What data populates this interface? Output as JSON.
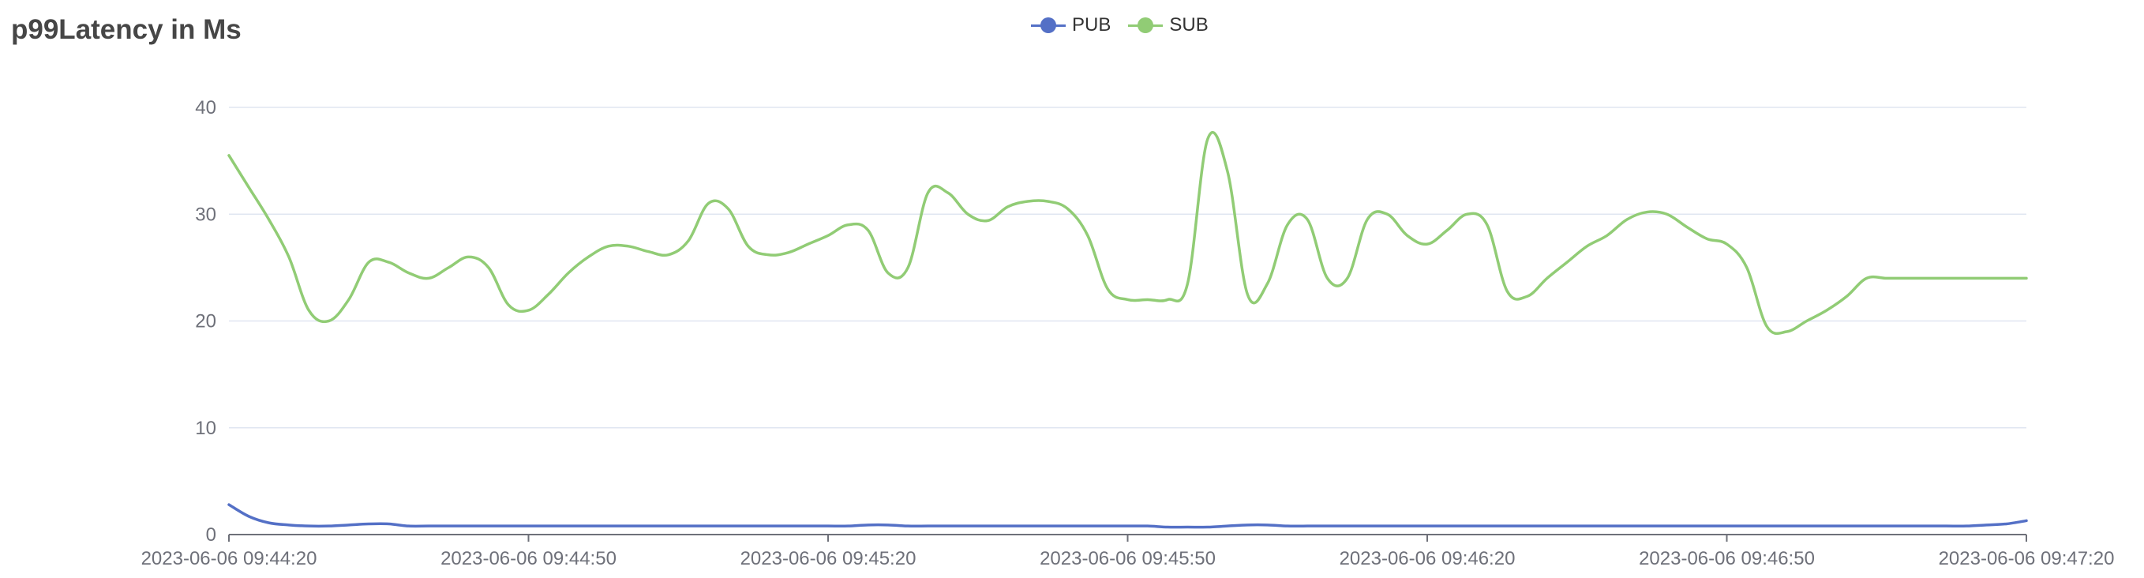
{
  "title": "p99Latency in Ms",
  "legend": [
    {
      "name": "PUB",
      "color": "#5470c6"
    },
    {
      "name": "SUB",
      "color": "#91cc75"
    }
  ],
  "chart_data": {
    "type": "line",
    "title": "p99Latency in Ms",
    "xlabel": "",
    "ylabel": "",
    "ylim": [
      0,
      40
    ],
    "y_ticks": [
      0,
      10,
      20,
      30,
      40
    ],
    "x_ticks": [
      "2023-06-06 09:44:20",
      "2023-06-06 09:44:50",
      "2023-06-06 09:45:20",
      "2023-06-06 09:45:50",
      "2023-06-06 09:46:20",
      "2023-06-06 09:46:50",
      "2023-06-06 09:47:20"
    ],
    "grid": true,
    "smooth": true,
    "legend_position": "top-center",
    "x": [
      "09:44:20",
      "09:44:22",
      "09:44:24",
      "09:44:26",
      "09:44:28",
      "09:44:30",
      "09:44:32",
      "09:44:34",
      "09:44:36",
      "09:44:38",
      "09:44:40",
      "09:44:42",
      "09:44:44",
      "09:44:46",
      "09:44:48",
      "09:44:50",
      "09:44:52",
      "09:44:54",
      "09:44:56",
      "09:44:58",
      "09:45:00",
      "09:45:02",
      "09:45:04",
      "09:45:06",
      "09:45:08",
      "09:45:10",
      "09:45:12",
      "09:45:14",
      "09:45:16",
      "09:45:18",
      "09:45:20",
      "09:45:22",
      "09:45:24",
      "09:45:26",
      "09:45:28",
      "09:45:30",
      "09:45:32",
      "09:45:34",
      "09:45:36",
      "09:45:38",
      "09:45:40",
      "09:45:42",
      "09:45:44",
      "09:45:46",
      "09:45:48",
      "09:45:50",
      "09:45:52",
      "09:45:54",
      "09:45:56",
      "09:45:58",
      "09:46:00",
      "09:46:02",
      "09:46:04",
      "09:46:06",
      "09:46:08",
      "09:46:10",
      "09:46:12",
      "09:46:14",
      "09:46:16",
      "09:46:18",
      "09:46:20",
      "09:46:22",
      "09:46:24",
      "09:46:26",
      "09:46:28",
      "09:46:30",
      "09:46:32",
      "09:46:34",
      "09:46:36",
      "09:46:38",
      "09:46:40",
      "09:46:42",
      "09:46:44",
      "09:46:46",
      "09:46:48",
      "09:46:50",
      "09:46:52",
      "09:46:54",
      "09:46:56",
      "09:46:58",
      "09:47:00",
      "09:47:02",
      "09:47:04",
      "09:47:06",
      "09:47:08",
      "09:47:10",
      "09:47:12",
      "09:47:14",
      "09:47:16",
      "09:47:18",
      "09:47:20"
    ],
    "series": [
      {
        "name": "PUB",
        "color": "#5470c6",
        "values": [
          2.8,
          1.7,
          1.1,
          0.9,
          0.8,
          0.8,
          0.9,
          1.0,
          1.0,
          0.8,
          0.8,
          0.8,
          0.8,
          0.8,
          0.8,
          0.8,
          0.8,
          0.8,
          0.8,
          0.8,
          0.8,
          0.8,
          0.8,
          0.8,
          0.8,
          0.8,
          0.8,
          0.8,
          0.8,
          0.8,
          0.8,
          0.8,
          0.9,
          0.9,
          0.8,
          0.8,
          0.8,
          0.8,
          0.8,
          0.8,
          0.8,
          0.8,
          0.8,
          0.8,
          0.8,
          0.8,
          0.8,
          0.7,
          0.7,
          0.7,
          0.8,
          0.9,
          0.9,
          0.8,
          0.8,
          0.8,
          0.8,
          0.8,
          0.8,
          0.8,
          0.8,
          0.8,
          0.8,
          0.8,
          0.8,
          0.8,
          0.8,
          0.8,
          0.8,
          0.8,
          0.8,
          0.8,
          0.8,
          0.8,
          0.8,
          0.8,
          0.8,
          0.8,
          0.8,
          0.8,
          0.8,
          0.8,
          0.8,
          0.8,
          0.8,
          0.8,
          0.8,
          0.8,
          0.9,
          1.0,
          1.3
        ]
      },
      {
        "name": "SUB",
        "color": "#91cc75",
        "values": [
          35.5,
          32.5,
          29.5,
          26,
          21,
          20,
          22,
          25.5,
          25.5,
          24.5,
          24,
          25,
          26,
          25,
          21.5,
          21,
          22.5,
          24.5,
          26,
          27,
          27,
          26.5,
          26.2,
          27.5,
          31,
          30.5,
          27,
          26.2,
          26.4,
          27.2,
          28,
          29,
          28.5,
          24.5,
          25,
          32,
          32,
          30,
          29.4,
          30.7,
          31.2,
          31.2,
          30.5,
          28,
          23,
          22,
          22,
          22,
          23.5,
          37,
          34,
          22.5,
          23.5,
          29,
          29.5,
          24,
          24,
          29.5,
          30,
          28,
          27.2,
          28.5,
          30,
          29,
          22.8,
          22.3,
          24,
          25.5,
          27,
          28,
          29.5,
          30.2,
          30,
          28.8,
          27.7,
          27.2,
          25,
          19.5,
          19,
          20,
          21,
          22.3,
          24,
          24,
          24,
          24,
          24,
          24,
          24,
          24,
          24
        ]
      }
    ]
  }
}
